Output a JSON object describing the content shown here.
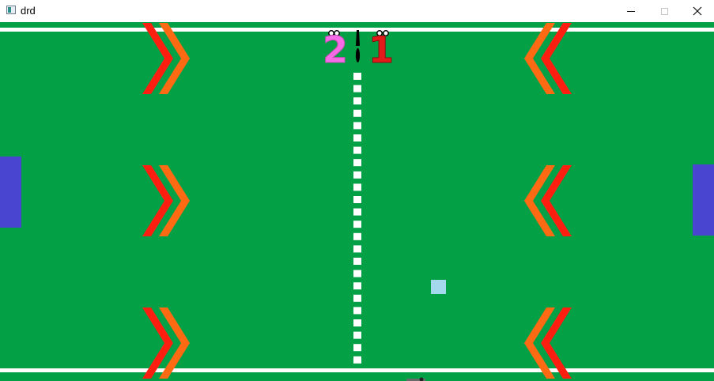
{
  "window": {
    "title": "drd",
    "icon": "app-window-icon",
    "controls": [
      "minimize-icon",
      "maximize-icon",
      "close-icon"
    ]
  },
  "game": {
    "colors": {
      "field": "#04a046",
      "line": "#ffffff",
      "paddle": "#4a45d1",
      "ball": "#a4d8ec",
      "chevron_red": "#ff1e10",
      "chevron_orange": "#ff6a12",
      "score_left": "#f66be6",
      "score_right": "#e21a1a"
    },
    "score": {
      "left": "2",
      "right": "1"
    },
    "paddles": {
      "left": {
        "side": "left"
      },
      "right": {
        "side": "right"
      }
    },
    "chevrons": {
      "left_direction": "right",
      "right_direction": "left",
      "rows": [
        "top",
        "middle",
        "bottom"
      ]
    }
  }
}
